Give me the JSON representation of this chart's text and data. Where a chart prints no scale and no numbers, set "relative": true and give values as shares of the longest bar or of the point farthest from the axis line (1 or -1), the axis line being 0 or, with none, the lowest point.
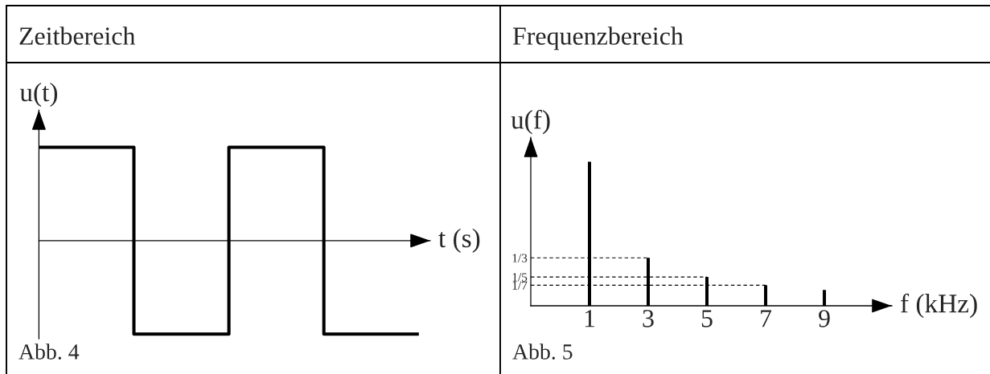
{
  "chart_data": [
    {
      "type": "step",
      "title": "Zeitbereich",
      "ylabel": "u(t)",
      "xlabel": "t (s)",
      "categories": [
        null,
        null,
        null,
        null,
        null
      ],
      "values": [
        1,
        -1,
        1,
        -1,
        -1
      ],
      "color": "#000000",
      "relative": true,
      "annotations": [
        "Abb. 4"
      ]
    },
    {
      "type": "bar",
      "title": "Frequenzbereich",
      "ylabel": "u(f)",
      "xlabel": "f (kHz)",
      "x": [
        1,
        3,
        5,
        7,
        9
      ],
      "values": [
        1,
        0.333,
        0.2,
        0.143,
        0.11
      ],
      "color": "#000000",
      "xlim": [
        -1,
        11.3
      ],
      "xticks": [
        1,
        3,
        5,
        7,
        9
      ],
      "ylim": [
        0,
        1.17
      ],
      "yticks": [
        {
          "value": 0.333,
          "label": "1/3"
        },
        {
          "value": 0.2,
          "label": "1/5"
        },
        {
          "value": 0.143,
          "label": "1/7"
        }
      ],
      "ref_lines": [
        {
          "axis": "y",
          "value": 0.333,
          "line_style": "dashed",
          "color": "#000000"
        },
        {
          "axis": "y",
          "value": 0.2,
          "line_style": "dashed",
          "color": "#000000"
        },
        {
          "axis": "y",
          "value": 0.143,
          "line_style": "dashed",
          "color": "#000000"
        }
      ],
      "annotations": [
        "Abb. 5"
      ]
    }
  ]
}
